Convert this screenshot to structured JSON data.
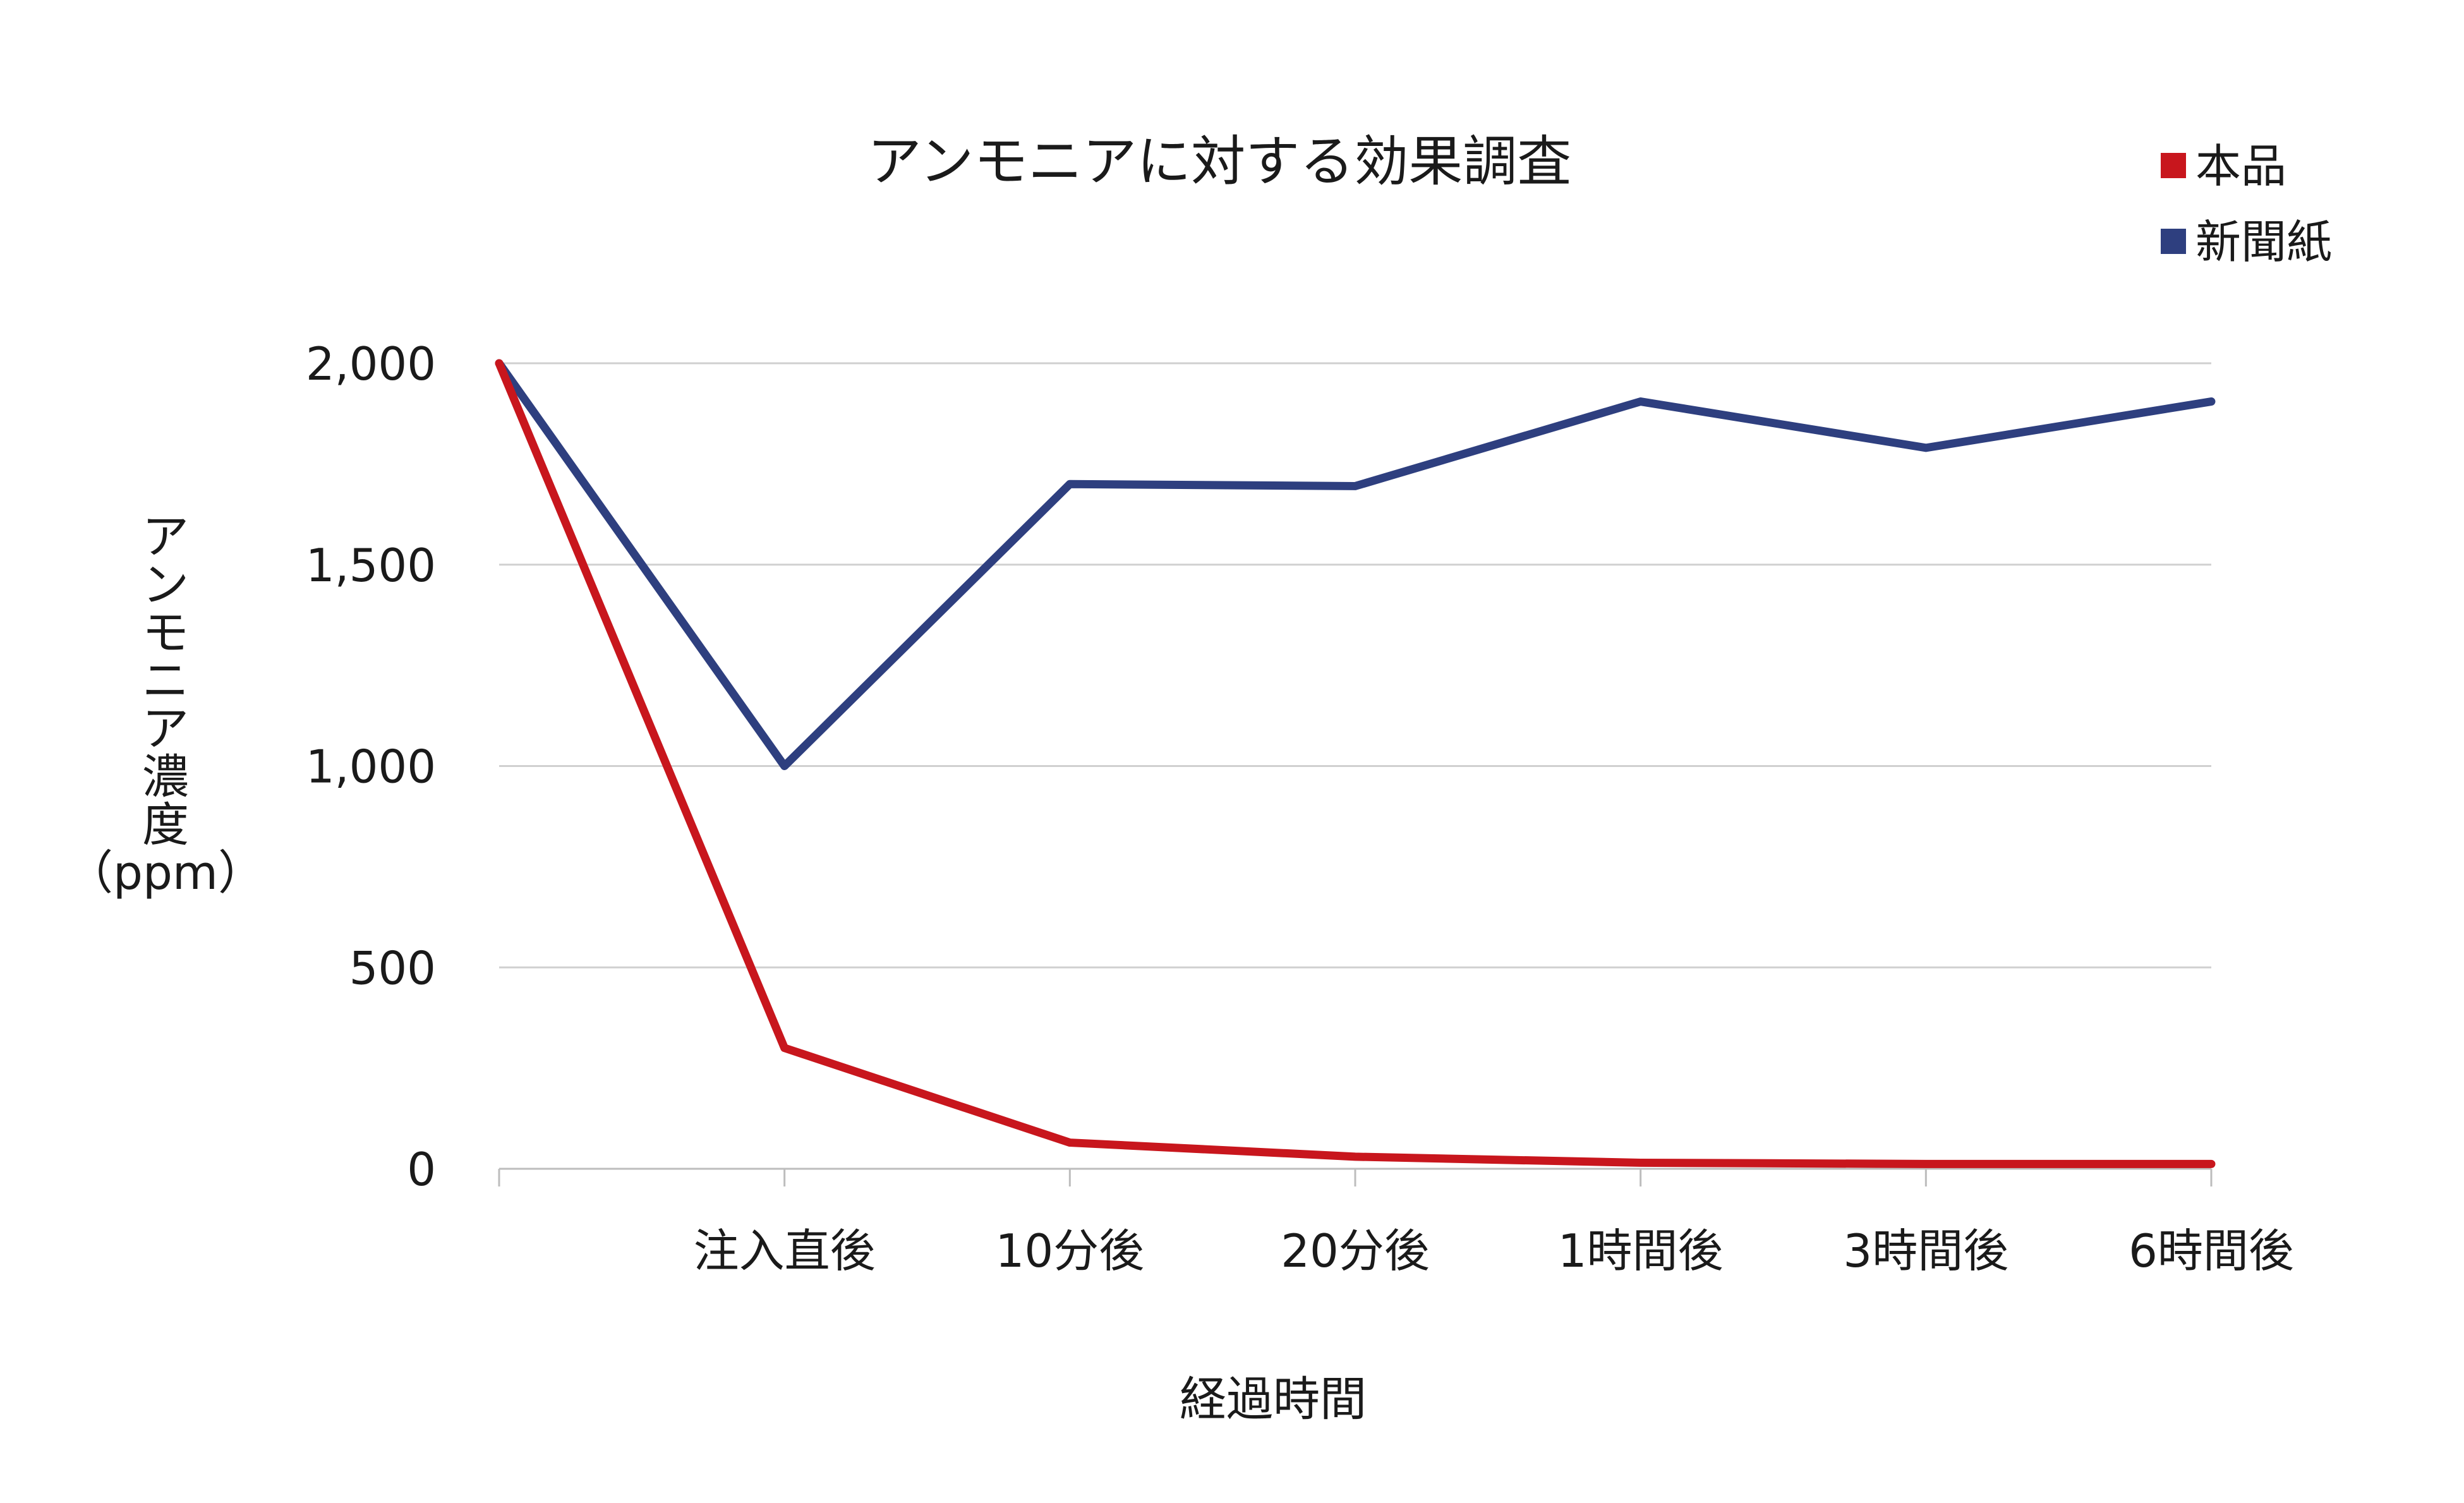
{
  "chart_data": {
    "type": "line",
    "title": "アンモニアに対する効果調査",
    "xlabel": "経過時間",
    "ylabel_lines": [
      "ア",
      "ン",
      "モ",
      "ニ",
      "ア",
      "濃",
      "度",
      "（ppm）"
    ],
    "categories": [
      "",
      "注入直後",
      "10分後",
      "20分後",
      "1時間後",
      "3時間後",
      "6時間後"
    ],
    "y_ticks": [
      "0",
      "500",
      "1,000",
      "1,500",
      "2,000"
    ],
    "y_tick_values": [
      0,
      500,
      1000,
      1500,
      2000
    ],
    "ylim": [
      0,
      2000
    ],
    "grid": true,
    "legend_position": "top-right",
    "series": [
      {
        "name": "本品",
        "color": "#c8161d",
        "values": [
          2000,
          300,
          65,
          30,
          15,
          12,
          12
        ]
      },
      {
        "name": "新聞紙",
        "color": "#2e3f7f",
        "values": [
          2000,
          1000,
          1700,
          1695,
          1905,
          1790,
          1905
        ]
      }
    ]
  }
}
